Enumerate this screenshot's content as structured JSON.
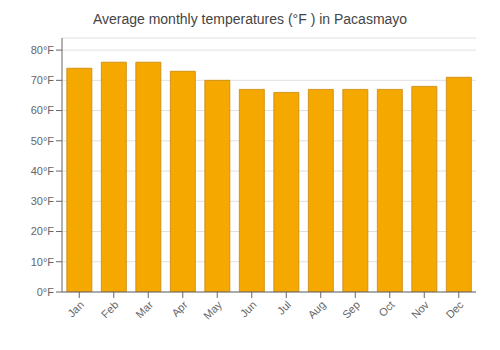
{
  "chart_data": {
    "type": "bar",
    "title": "Average monthly temperatures (°F ) in Pacasmayo",
    "categories": [
      "Jan",
      "Feb",
      "Mar",
      "Apr",
      "May",
      "Jun",
      "Jul",
      "Aug",
      "Sep",
      "Oct",
      "Nov",
      "Dec"
    ],
    "values": [
      74,
      76,
      76,
      73,
      70,
      67,
      66,
      67,
      67,
      67,
      68,
      71
    ],
    "color": "#F5A800",
    "ylim": [
      0,
      84
    ],
    "yticks": [
      {
        "value": 0,
        "label": "0°F"
      },
      {
        "value": 10,
        "label": "10°F"
      },
      {
        "value": 20,
        "label": "20°F"
      },
      {
        "value": 30,
        "label": "30°F"
      },
      {
        "value": 40,
        "label": "40°F"
      },
      {
        "value": 50,
        "label": "50°F"
      },
      {
        "value": 60,
        "label": "60°F"
      },
      {
        "value": 70,
        "label": "70°F"
      },
      {
        "value": 80,
        "label": "80°F"
      }
    ],
    "grid": true
  }
}
